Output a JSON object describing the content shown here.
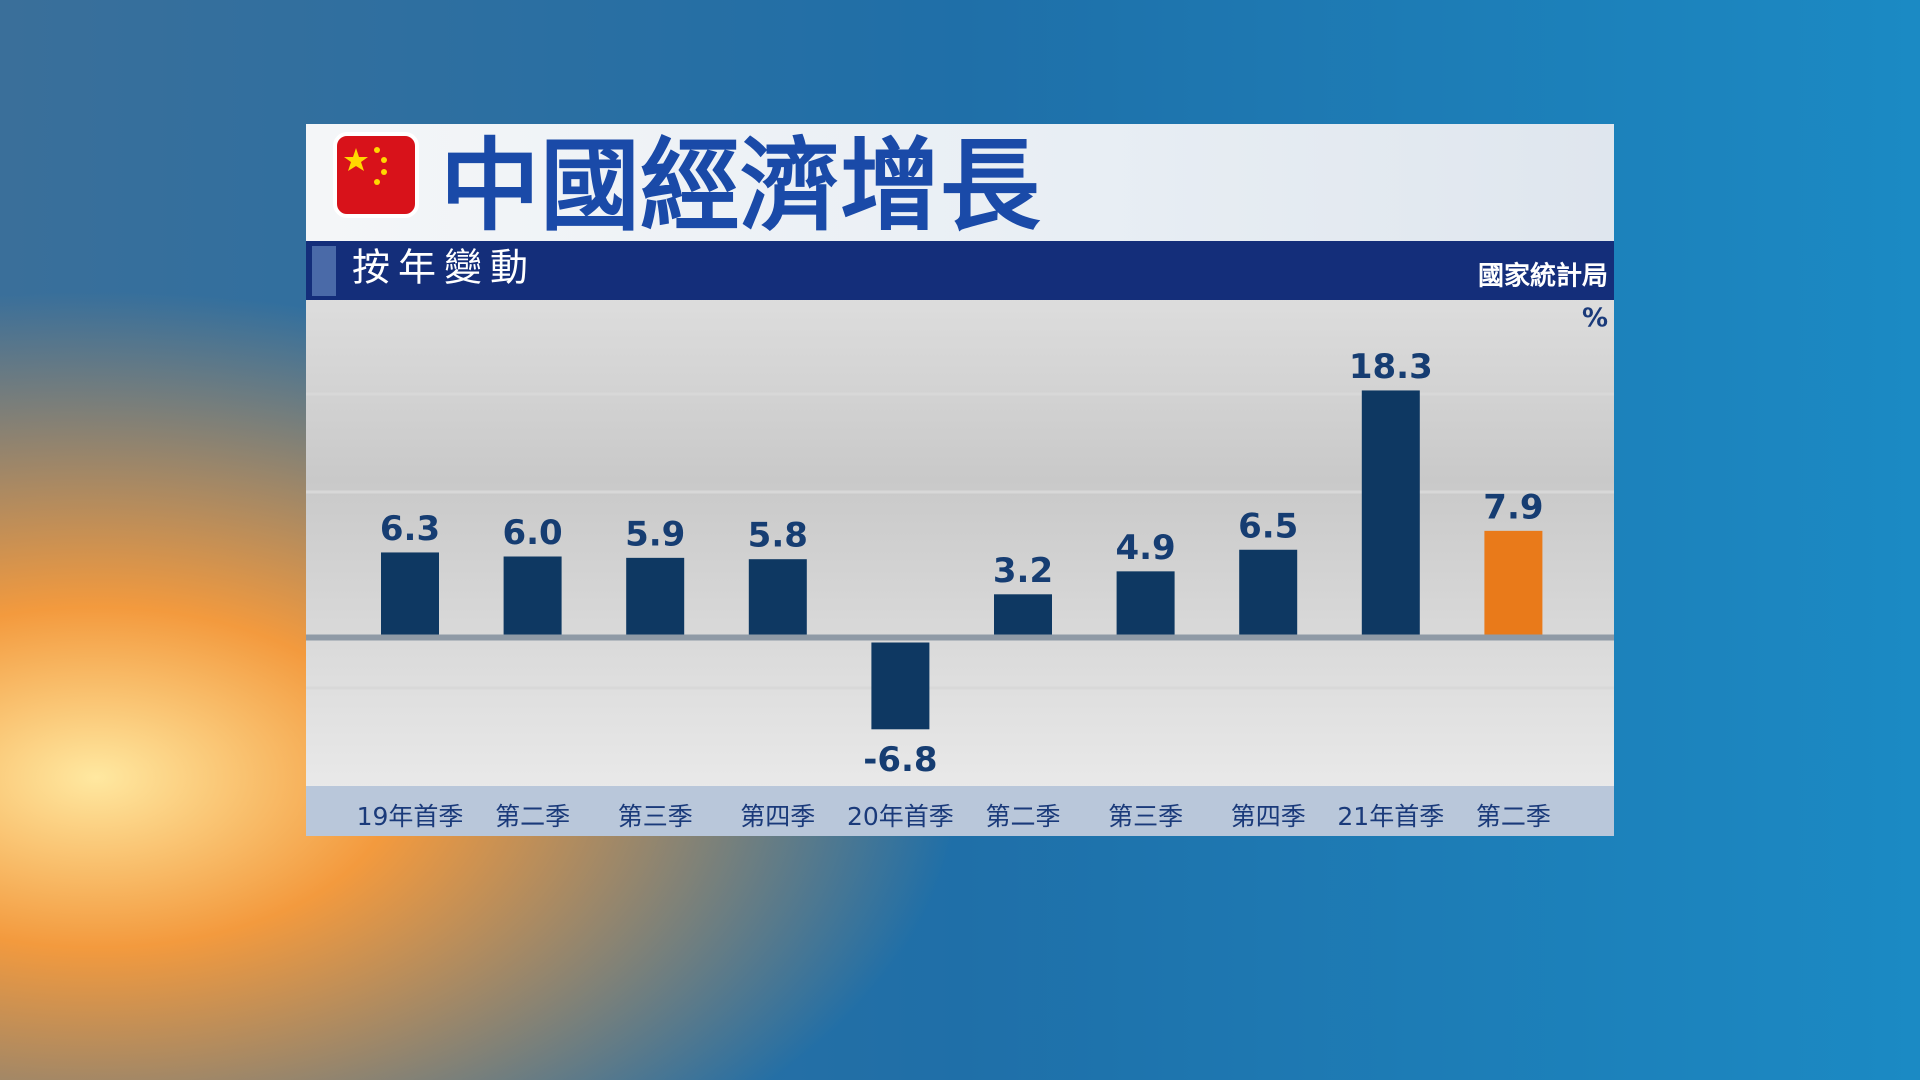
{
  "chart_data": {
    "type": "bar",
    "title": "中國經濟增長",
    "subtitle": "按年變動",
    "source": "國家統計局",
    "unit": "%",
    "categories": [
      "19年首季",
      "第二季",
      "第三季",
      "第四季",
      "20年首季",
      "第二季",
      "第三季",
      "第四季",
      "21年首季",
      "第二季"
    ],
    "values": [
      6.3,
      6.0,
      5.9,
      5.8,
      -6.8,
      3.2,
      4.9,
      6.5,
      18.3,
      7.9
    ],
    "value_labels": [
      "6.3",
      "6.0",
      "5.9",
      "5.8",
      "-6.8",
      "3.2",
      "4.9",
      "6.5",
      "18.3",
      "7.9"
    ],
    "colors": [
      "#0e3862",
      "#0e3862",
      "#0e3862",
      "#0e3862",
      "#0e3862",
      "#0e3862",
      "#0e3862",
      "#0e3862",
      "#0e3862",
      "#e97a1a"
    ],
    "ylim": [
      -11,
      25
    ]
  }
}
